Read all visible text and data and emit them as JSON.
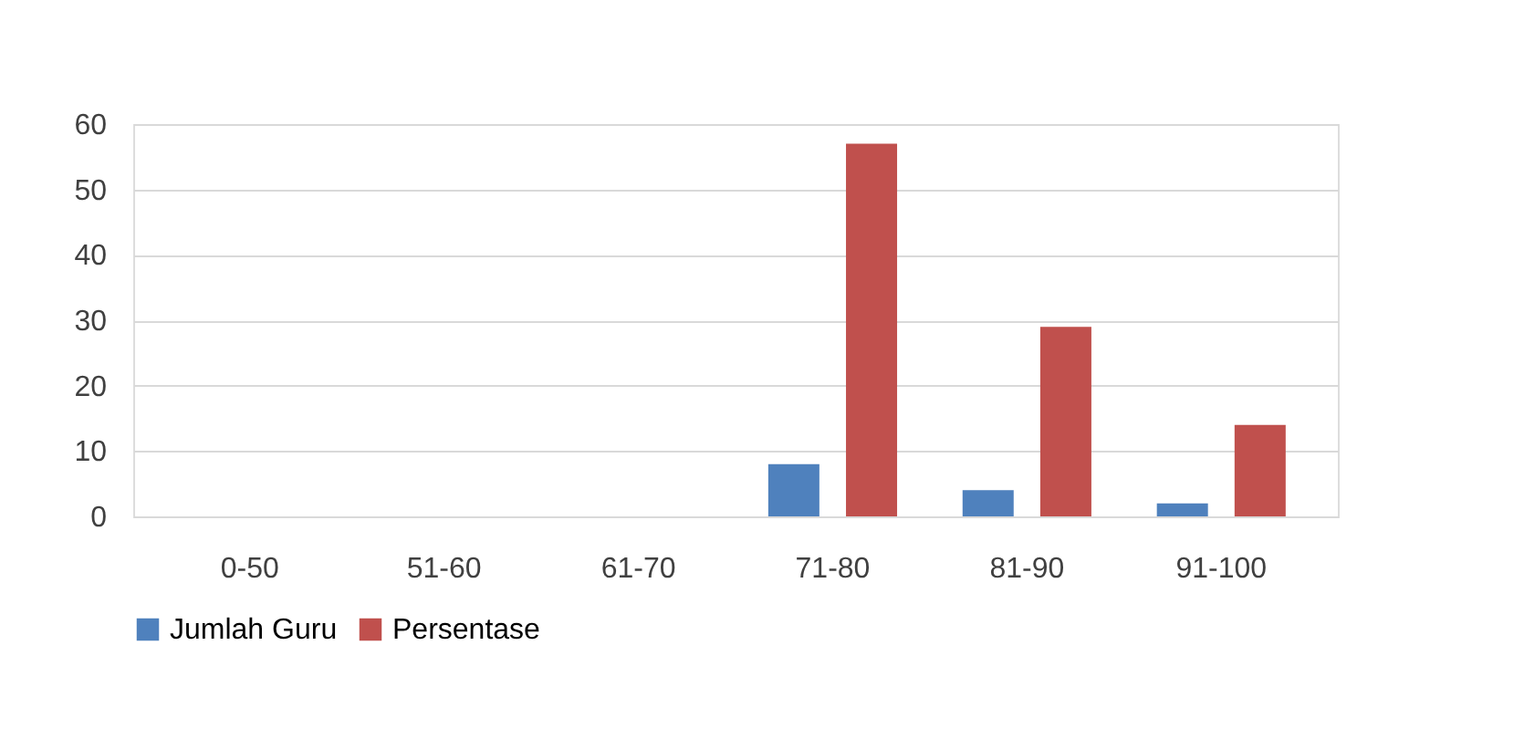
{
  "chart_data": {
    "type": "bar",
    "categories": [
      "0-50",
      "51-60",
      "61-70",
      "71-80",
      "81-90",
      "91-100"
    ],
    "series": [
      {
        "name": "Jumlah Guru",
        "color": "#4f81bd",
        "values": [
          0,
          0,
          0,
          8,
          4,
          2
        ]
      },
      {
        "name": "Persentase",
        "color": "#c0504d",
        "values": [
          0,
          0,
          0,
          57,
          29,
          14
        ]
      }
    ],
    "ylim": [
      0,
      60
    ],
    "yticks": [
      0,
      10,
      20,
      30,
      40,
      50,
      60
    ],
    "grid": "y",
    "legend": "bottom"
  }
}
